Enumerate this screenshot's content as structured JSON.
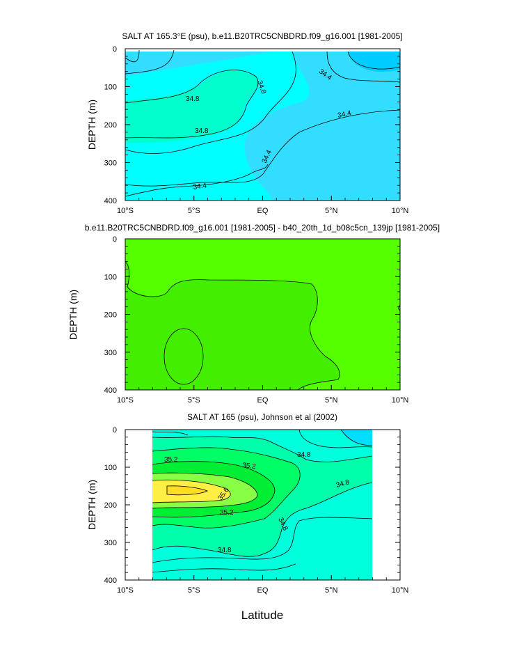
{
  "colors": {
    "panel1": [
      "#33ddff",
      "#00ffff",
      "#00ffcc",
      "#00ccff"
    ],
    "panel2": [
      "#55ff00",
      "#44ee00"
    ],
    "panel3": [
      "#00ffdd",
      "#00ffaa",
      "#00ff66",
      "#00ee33",
      "#88ff44",
      "#ffee44",
      "#ffdd22",
      "#00ddff"
    ]
  },
  "chart_data": [
    {
      "type": "contour",
      "title": "SALT AT 165.3°E (psu), b.e11.B20TRC5CNBDRD.f09_g16.001 [1981-2005]",
      "ylabel": "DEPTH (m)",
      "xlabel": "",
      "xlim": [
        -10,
        10
      ],
      "ylim": [
        400,
        0
      ],
      "xticks": [
        "10°S",
        "5°S",
        "EQ",
        "5°N",
        "10°N"
      ],
      "yticks": [
        "0",
        "100",
        "200",
        "300",
        "400"
      ],
      "contour_labels": [
        "34.8",
        "34.8",
        "34.8",
        "34.4",
        "34.4",
        "34.4",
        "34.4"
      ]
    },
    {
      "type": "contour",
      "title": "b.e11.B20TRC5CNBDRD.f09_g16.001 [1981-2005] - b40_20th_1d_b08c5cn_139jp [1981-2005]",
      "ylabel": "DEPTH (m)",
      "xlabel": "",
      "xlim": [
        -10,
        10
      ],
      "ylim": [
        400,
        0
      ],
      "xticks": [
        "10°S",
        "5°S",
        "EQ",
        "5°N",
        "10°N"
      ],
      "yticks": [
        "0",
        "100",
        "200",
        "300",
        "400"
      ],
      "contour_labels": []
    },
    {
      "type": "contour",
      "title": "SALT AT 165 (psu), Johnson et al (2002)",
      "ylabel": "DEPTH (m)",
      "xlabel": "Latitude",
      "xlim": [
        -10,
        10
      ],
      "ylim": [
        400,
        0
      ],
      "xticks": [
        "10°S",
        "5°S",
        "EQ",
        "5°N",
        "10°N"
      ],
      "yticks": [
        "0",
        "100",
        "200",
        "300",
        "400"
      ],
      "contour_labels": [
        "35.2",
        "35.2",
        "35.6",
        "35.2",
        "34.8",
        "34.8",
        "34.8",
        "34.8"
      ]
    }
  ]
}
